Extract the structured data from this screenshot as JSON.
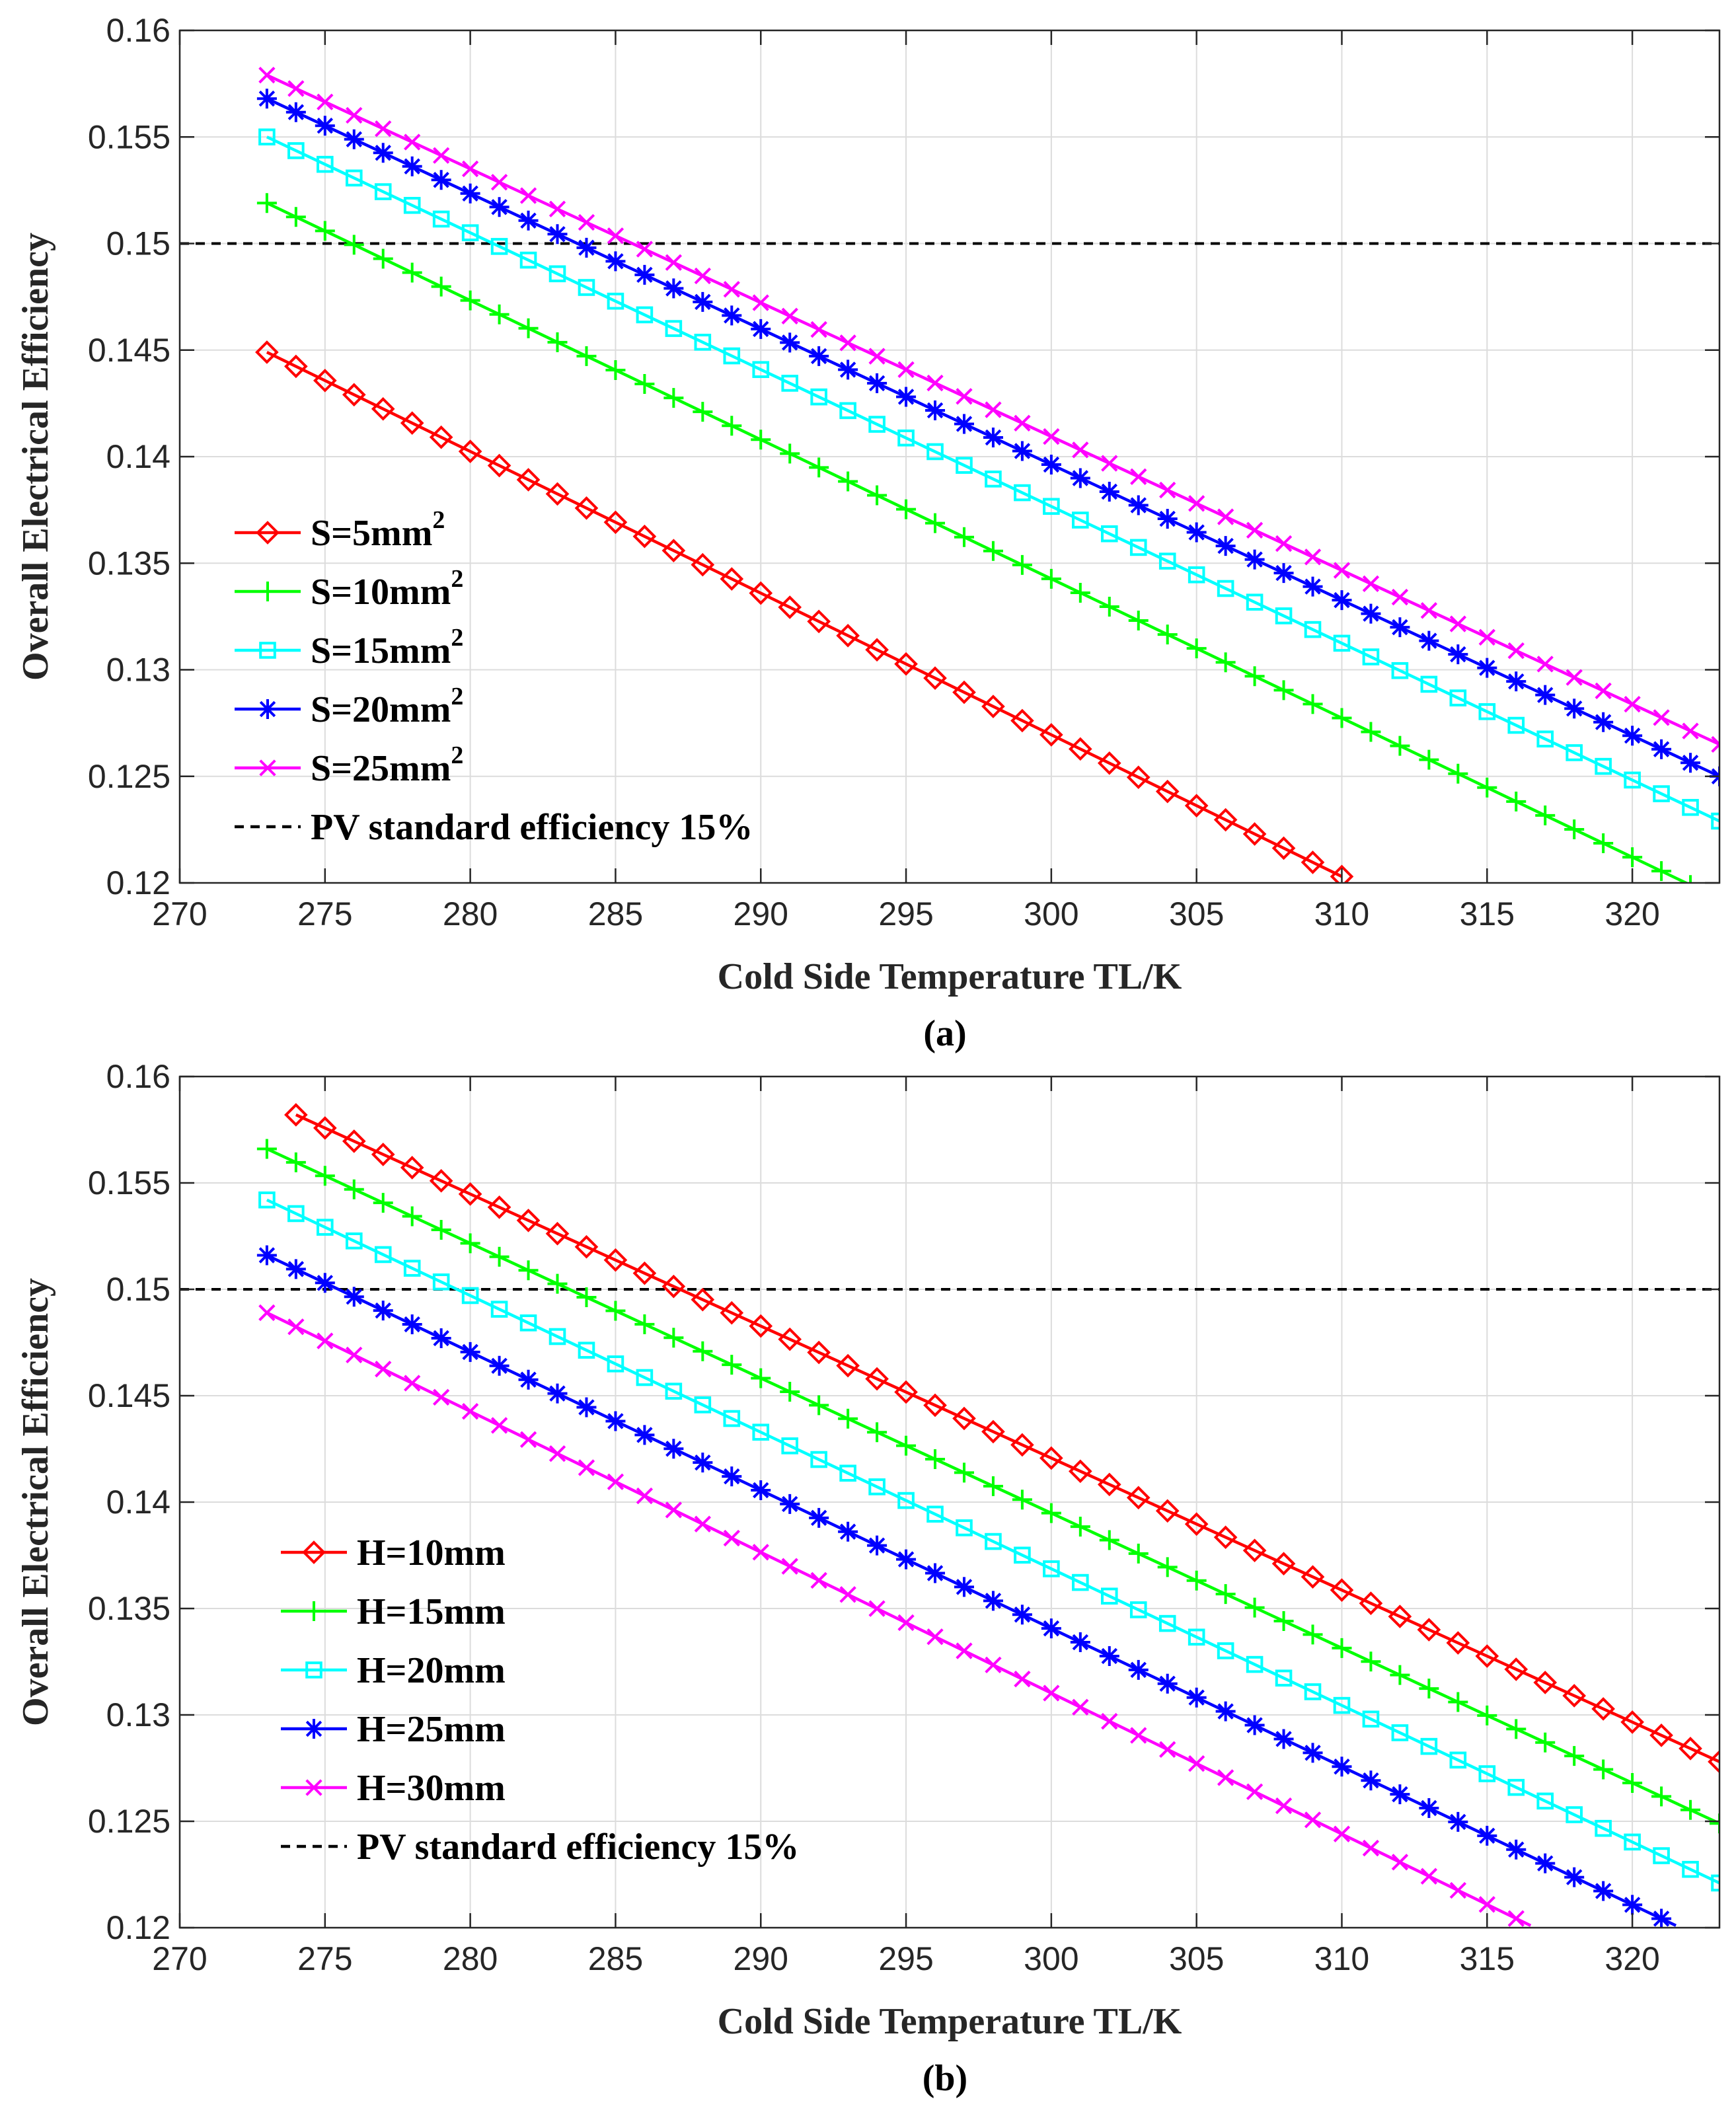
{
  "chart_data": [
    {
      "type": "line",
      "caption": "(a)",
      "xlabel": "Cold Side Temperature TL/K",
      "ylabel": "Overall Electrical Efficiency",
      "xlim": [
        270,
        323
      ],
      "ylim": [
        0.12,
        0.16
      ],
      "xticks": [
        "270",
        "275",
        "280",
        "285",
        "290",
        "295",
        "300",
        "305",
        "310",
        "315",
        "320"
      ],
      "yticks": [
        "0.12",
        "0.125",
        "0.13",
        "0.135",
        "0.14",
        "0.145",
        "0.15",
        "0.155",
        "0.16"
      ],
      "grid": true,
      "legend_position": "bottom-left",
      "reference_line": {
        "name": "PV standard efficiency 15%",
        "y": 0.15,
        "color": "#000000",
        "style": "dashed"
      },
      "series": [
        {
          "name": "S=5mm",
          "sup": "2",
          "color": "#ff0000",
          "marker": "diamond",
          "x_start": 273,
          "x_end": 310,
          "y_start": 0.1449,
          "y_end": 0.1203
        },
        {
          "name": "S=10mm",
          "sup": "2",
          "color": "#00ff00",
          "marker": "plus",
          "x_start": 273,
          "x_end": 322,
          "y_start": 0.1519,
          "y_end": 0.1199
        },
        {
          "name": "S=15mm",
          "sup": "2",
          "color": "#00ffff",
          "marker": "square",
          "x_start": 273,
          "x_end": 323,
          "y_start": 0.155,
          "y_end": 0.1229
        },
        {
          "name": "S=20mm",
          "sup": "2",
          "color": "#0000ff",
          "marker": "asterisk",
          "x_start": 273,
          "x_end": 323,
          "y_start": 0.1568,
          "y_end": 0.125
        },
        {
          "name": "S=25mm",
          "sup": "2",
          "color": "#ff00ff",
          "marker": "x",
          "x_start": 273,
          "x_end": 323,
          "y_start": 0.1579,
          "y_end": 0.1265
        }
      ]
    },
    {
      "type": "line",
      "caption": "(b)",
      "xlabel": "Cold Side Temperature TL/K",
      "ylabel": "Overall Electrical Efficiency",
      "xlim": [
        270,
        323
      ],
      "ylim": [
        0.12,
        0.16
      ],
      "xticks": [
        "270",
        "275",
        "280",
        "285",
        "290",
        "295",
        "300",
        "305",
        "310",
        "315",
        "320"
      ],
      "yticks": [
        "0.12",
        "0.125",
        "0.13",
        "0.135",
        "0.14",
        "0.145",
        "0.15",
        "0.155",
        "0.16"
      ],
      "grid": true,
      "legend_position": "bottom-left",
      "reference_line": {
        "name": "PV standard efficiency 15%",
        "y": 0.15,
        "color": "#000000",
        "style": "dashed"
      },
      "series": [
        {
          "name": "H=10mm",
          "sup": "",
          "color": "#ff0000",
          "marker": "diamond",
          "x_start": 274,
          "x_end": 323,
          "y_start": 0.1582,
          "y_end": 0.1278
        },
        {
          "name": "H=15mm",
          "sup": "",
          "color": "#00ff00",
          "marker": "plus",
          "x_start": 273,
          "x_end": 323,
          "y_start": 0.1566,
          "y_end": 0.1249
        },
        {
          "name": "H=20mm",
          "sup": "",
          "color": "#00ffff",
          "marker": "square",
          "x_start": 273,
          "x_end": 323,
          "y_start": 0.1542,
          "y_end": 0.1221
        },
        {
          "name": "H=25mm",
          "sup": "",
          "color": "#0000ff",
          "marker": "asterisk",
          "x_start": 273,
          "x_end": 321.5,
          "y_start": 0.1516,
          "y_end": 0.1201
        },
        {
          "name": "H=30mm",
          "sup": "",
          "color": "#ff00ff",
          "marker": "x",
          "x_start": 273,
          "x_end": 316.5,
          "y_start": 0.1489,
          "y_end": 0.1201
        }
      ]
    }
  ]
}
